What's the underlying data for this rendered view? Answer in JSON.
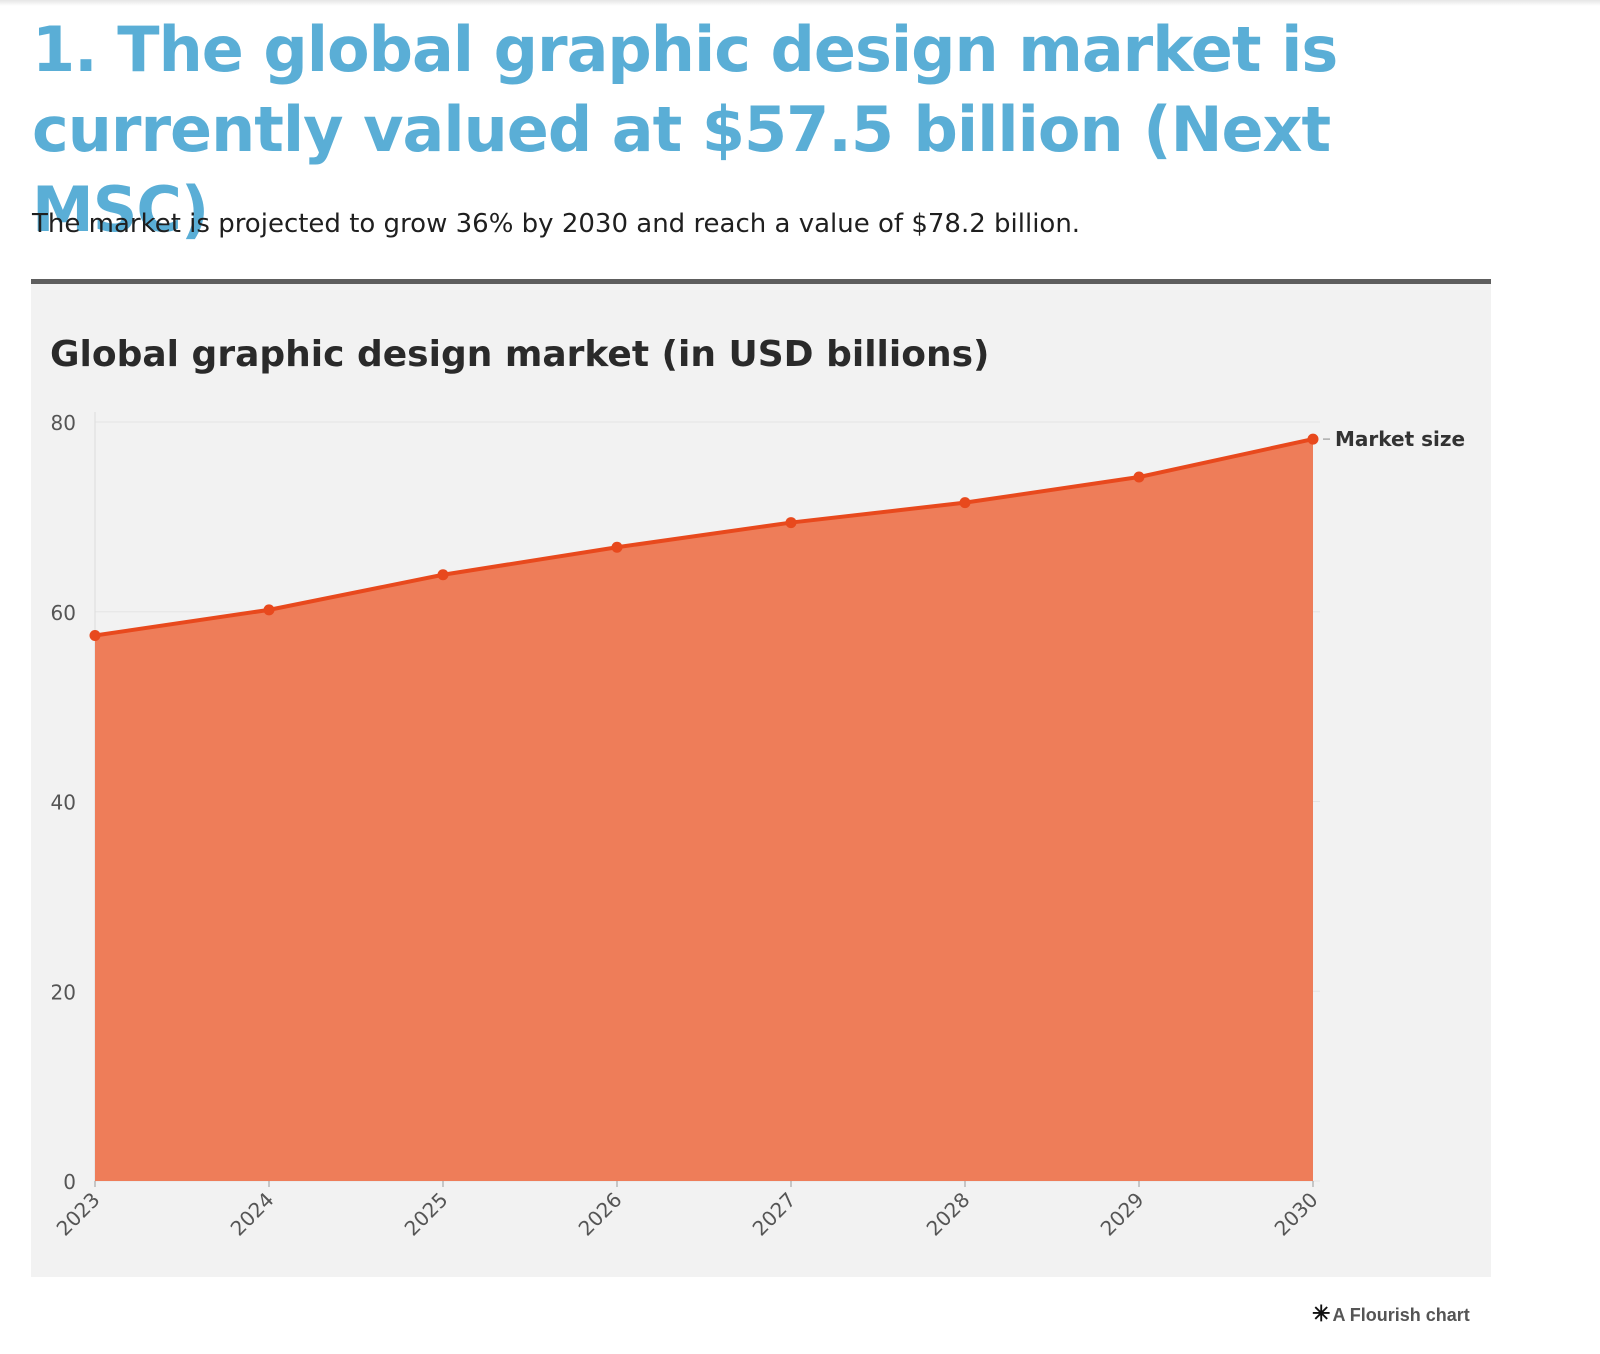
{
  "article": {
    "headline": "1. The global graphic design market is currently valued at $57.5 billion (Next MSC)",
    "subtitle": "The market is projected to grow 36% by 2030 and reach a value of $78.2 billion."
  },
  "chart_data": {
    "type": "area",
    "title": "Global graphic design market (in USD billions)",
    "x": [
      "2023",
      "2024",
      "2025",
      "2026",
      "2027",
      "2028",
      "2029",
      "2030"
    ],
    "series": [
      {
        "name": "Market size",
        "values": [
          57.5,
          60.2,
          63.9,
          66.8,
          69.4,
          71.5,
          74.2,
          78.2
        ]
      }
    ],
    "ylim": [
      0,
      80
    ],
    "yticks": [
      0,
      20,
      40,
      60,
      80
    ],
    "xlabel": "",
    "ylabel": "",
    "grid": true,
    "legend": "end-of-line label",
    "colors": {
      "line": "#e8491d",
      "fill": "#ee7d59",
      "background": "#f2f2f2"
    }
  },
  "footer": {
    "credit_icon": "flourish-asterisk-icon",
    "credit_text": "A Flourish chart"
  }
}
